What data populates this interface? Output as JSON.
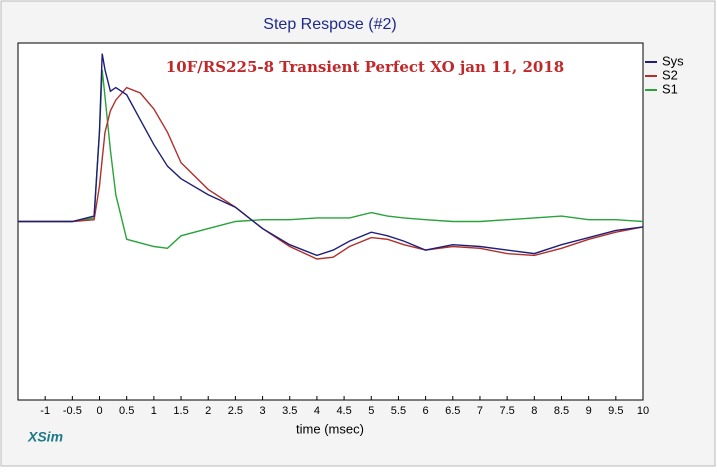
{
  "chart_data": {
    "type": "line",
    "title": "Step Respose (#2)",
    "annotation": "10F/RS225-8 Transient Perfect XO  jan 11, 2018",
    "xlabel": "time (msec)",
    "brand": "XSim",
    "x": [
      -1.5,
      -0.5,
      -0.1,
      0,
      0.05,
      0.1,
      0.2,
      0.3,
      0.5,
      0.75,
      1,
      1.25,
      1.5,
      2,
      2.5,
      3,
      3.5,
      4,
      4.3,
      4.6,
      5,
      5.3,
      5.6,
      6,
      6.5,
      7,
      7.5,
      8,
      8.5,
      9,
      9.5,
      10
    ],
    "series": [
      {
        "name": "Sys",
        "color": "#1f1f7a",
        "values": [
          0,
          0,
          0.03,
          0.51,
          0.94,
          0.85,
          0.73,
          0.75,
          0.71,
          0.57,
          0.43,
          0.31,
          0.24,
          0.15,
          0.08,
          -0.04,
          -0.13,
          -0.19,
          -0.16,
          -0.11,
          -0.06,
          -0.08,
          -0.11,
          -0.16,
          -0.13,
          -0.14,
          -0.16,
          -0.18,
          -0.13,
          -0.09,
          -0.05,
          -0.03
        ]
      },
      {
        "name": "S2",
        "color": "#b0302c",
        "values": [
          0,
          0,
          0.01,
          0.2,
          0.35,
          0.5,
          0.62,
          0.68,
          0.75,
          0.72,
          0.63,
          0.5,
          0.33,
          0.18,
          0.08,
          -0.04,
          -0.14,
          -0.21,
          -0.2,
          -0.14,
          -0.09,
          -0.1,
          -0.13,
          -0.16,
          -0.14,
          -0.15,
          -0.18,
          -0.19,
          -0.15,
          -0.1,
          -0.06,
          -0.03
        ]
      },
      {
        "name": "S1",
        "color": "#2aa33a",
        "values": [
          0,
          0,
          0.02,
          0.5,
          0.85,
          0.7,
          0.4,
          0.15,
          -0.1,
          -0.12,
          -0.14,
          -0.15,
          -0.08,
          -0.04,
          0,
          0.01,
          0.01,
          0.02,
          0.02,
          0.02,
          0.05,
          0.03,
          0.02,
          0.01,
          0,
          0,
          0.01,
          0.02,
          0.03,
          0.01,
          0.01,
          0
        ]
      }
    ],
    "xlim": [
      -1.5,
      10
    ],
    "ylim": [
      -1,
      1
    ],
    "xticks": [
      -1,
      -0.5,
      0,
      0.5,
      1,
      1.5,
      2,
      2.5,
      3,
      3.5,
      4,
      4.5,
      5,
      5.5,
      6,
      6.5,
      7,
      7.5,
      8,
      8.5,
      9,
      9.5,
      10
    ],
    "grid": false,
    "legend": "right"
  }
}
